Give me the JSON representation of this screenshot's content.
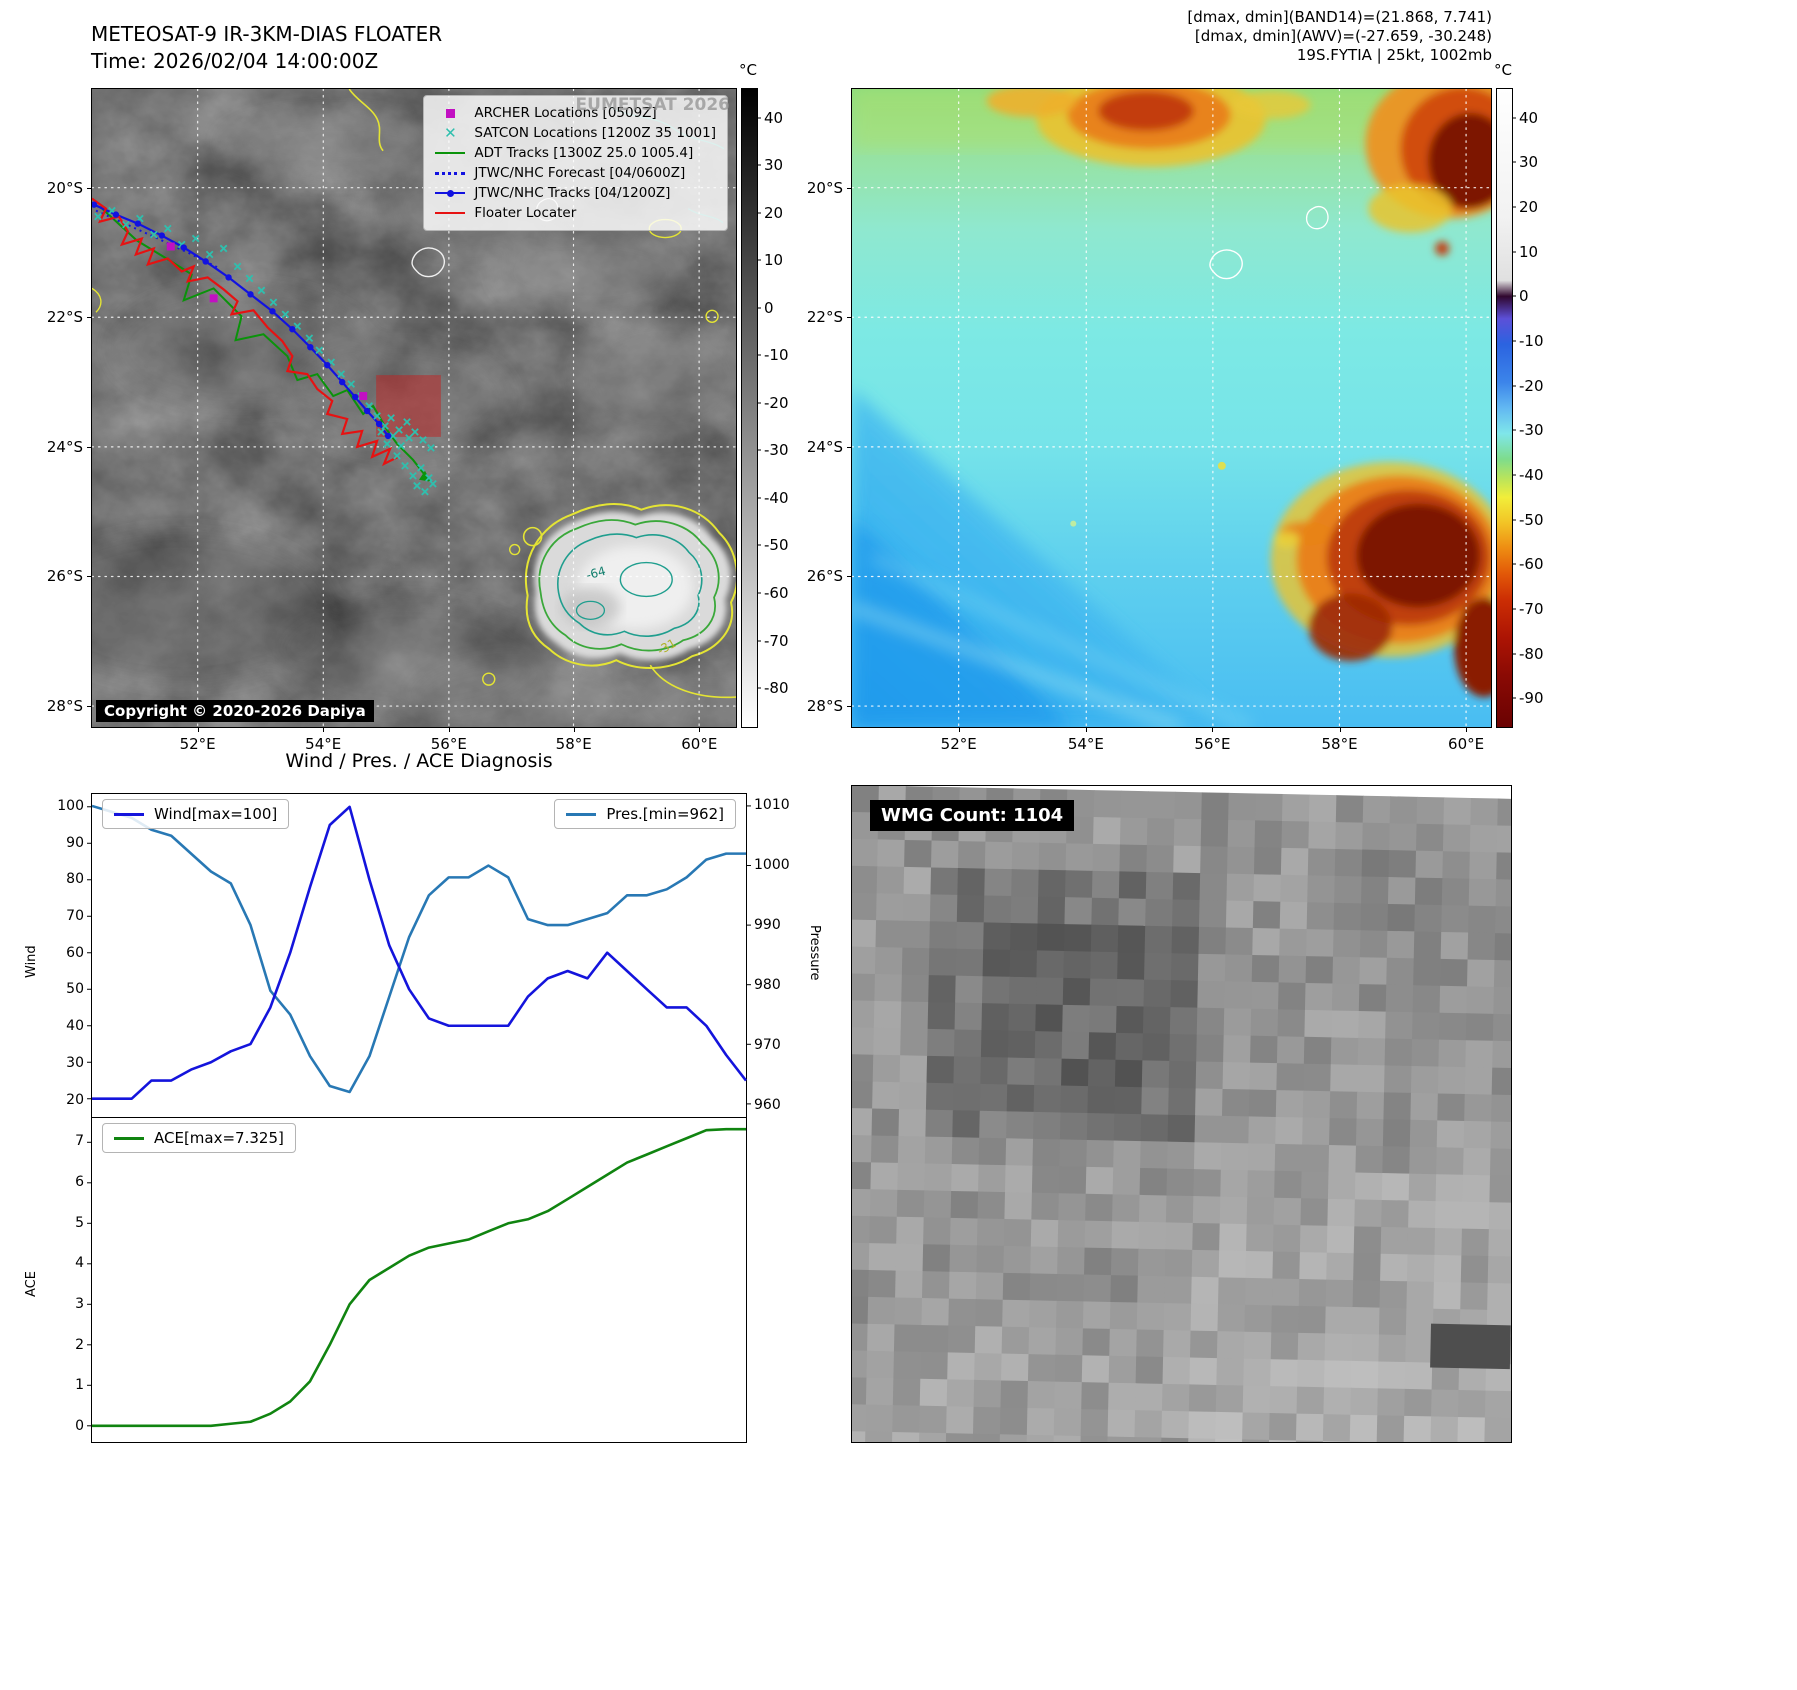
{
  "panel_ir": {
    "title": "METEOSAT-9 IR-3KM-DIAS FLOATER",
    "time_line": "Time: 2026/02/04 14:00:00Z",
    "watermark": "EUMETSAT 2026",
    "copyright": "Copyright © 2020-2026 Dapiya",
    "legend_items": [
      {
        "label": "ARCHER Locations [0509Z]",
        "marker": "magenta-square"
      },
      {
        "label": "SATCON Locations [1200Z 35 1001]",
        "marker": "cyan-x"
      },
      {
        "label": "ADT Tracks [1300Z 25.0 1005.4]",
        "marker": "green-line"
      },
      {
        "label": "JTWC/NHC Forecast [04/0600Z]",
        "marker": "blue-dotted-line"
      },
      {
        "label": "JTWC/NHC Tracks [04/1200Z]",
        "marker": "blue-line-with-dot"
      },
      {
        "label": "Floater Locater",
        "marker": "red-line"
      }
    ],
    "xticks": [
      "52°E",
      "54°E",
      "56°E",
      "58°E",
      "60°E"
    ],
    "yticks": [
      "20°S",
      "22°S",
      "24°S",
      "26°S",
      "28°S"
    ],
    "colorbar_unit": "°C",
    "colorbar_ticks": [
      "40",
      "30",
      "20",
      "10",
      "0",
      "-10",
      "-20",
      "-30",
      "-40",
      "-50",
      "-60",
      "-70",
      "-80"
    ],
    "contour_labels": [
      "-64",
      "-31"
    ]
  },
  "panel_enh": {
    "header_lines": [
      "[dmax, dmin](BAND14)=(21.868, 7.741)",
      "[dmax, dmin](AWV)=(-27.659, -30.248)",
      "19S.FYTIA | 25kt, 1002mb"
    ],
    "xticks": [
      "52°E",
      "54°E",
      "56°E",
      "58°E",
      "60°E"
    ],
    "yticks": [
      "20°S",
      "22°S",
      "24°S",
      "26°S",
      "28°S"
    ],
    "colorbar_unit": "°C",
    "colorbar_ticks": [
      "40",
      "30",
      "20",
      "10",
      "0",
      "-10",
      "-20",
      "-30",
      "-40",
      "-50",
      "-60",
      "-70",
      "-80",
      "-90"
    ]
  },
  "panel_wmg": {
    "label": "WMG Count: 1104"
  },
  "chart_data": [
    {
      "type": "line",
      "title": "Wind / Pres. / ACE Diagnosis",
      "x_unit": "time-step",
      "series": [
        {
          "name": "Wind[max=100]",
          "axis": "left",
          "color": "#1414dc",
          "values": [
            20,
            20,
            20,
            25,
            25,
            28,
            30,
            33,
            35,
            45,
            60,
            78,
            95,
            100,
            80,
            62,
            50,
            42,
            40,
            40,
            40,
            40,
            48,
            53,
            55,
            53,
            60,
            55,
            50,
            45,
            45,
            40,
            32,
            25
          ]
        },
        {
          "name": "Pres.[min=962]",
          "axis": "right",
          "color": "#2878b4",
          "values": [
            1010,
            1009,
            1008,
            1006,
            1005,
            1002,
            999,
            997,
            990,
            979,
            975,
            968,
            963,
            962,
            968,
            978,
            988,
            995,
            998,
            998,
            1000,
            998,
            991,
            990,
            990,
            991,
            992,
            995,
            995,
            996,
            998,
            1001,
            1002,
            1002
          ]
        }
      ],
      "ylabel_left": "Wind",
      "yticks_left": [
        20,
        30,
        40,
        50,
        60,
        70,
        80,
        90,
        100
      ],
      "ylim_left": [
        15,
        103.5
      ],
      "ylabel_right": "Pressure",
      "yticks_right": [
        960,
        970,
        980,
        990,
        1000,
        1010
      ],
      "ylim_right": [
        957.8,
        1012
      ],
      "legend_position": "upper-left and upper-right"
    },
    {
      "type": "line",
      "series": [
        {
          "name": "ACE[max=7.325]",
          "color": "#108410",
          "values": [
            0,
            0,
            0,
            0,
            0,
            0,
            0,
            0.05,
            0.1,
            0.3,
            0.6,
            1.1,
            2.0,
            3.0,
            3.6,
            3.9,
            4.2,
            4.4,
            4.5,
            4.6,
            4.8,
            5.0,
            5.1,
            5.3,
            5.6,
            5.9,
            6.2,
            6.5,
            6.7,
            6.9,
            7.1,
            7.3,
            7.325,
            7.325
          ]
        }
      ],
      "ylabel": "ACE",
      "yticks": [
        0,
        1,
        2,
        3,
        4,
        5,
        6,
        7
      ],
      "ylim": [
        -0.4,
        7.6
      ],
      "legend_position": "upper-left"
    }
  ],
  "colors": {
    "wind_line": "#1414dc",
    "pres_line": "#2878b4",
    "ace_line": "#108410",
    "archer_marker": "#c210c2",
    "satcon_marker": "#2fbfae",
    "adt_track": "#0a930a",
    "jtwc_track": "#1212e0",
    "floater_track": "#e61212",
    "floater_box": "#c42020"
  }
}
